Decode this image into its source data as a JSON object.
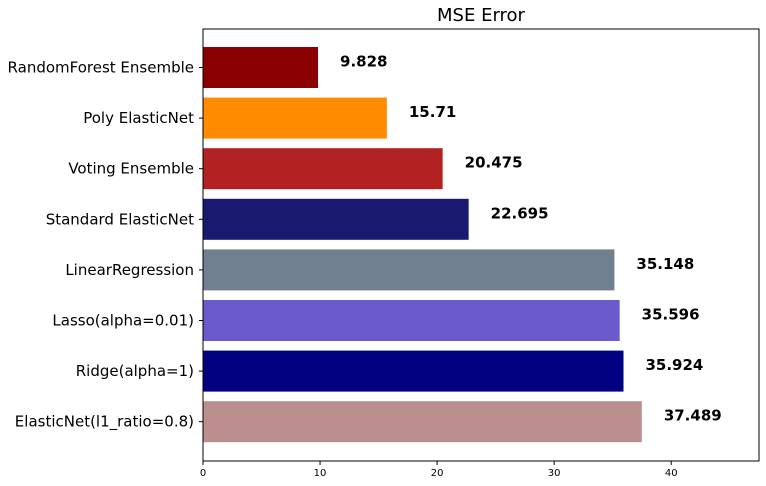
{
  "chart_data": {
    "type": "bar",
    "orientation": "horizontal",
    "title": "MSE Error",
    "xlabel": "",
    "ylabel": "",
    "xlim": [
      0,
      47.5
    ],
    "xticks": [
      0,
      10,
      20,
      30,
      40
    ],
    "grid": false,
    "categories": [
      "RandomForest Ensemble",
      "Poly ElasticNet",
      "Voting Ensemble",
      "Standard ElasticNet",
      "LinearRegression",
      "Lasso(alpha=0.01)",
      "Ridge(alpha=1)",
      "ElasticNet(l1_ratio=0.8)"
    ],
    "values": [
      9.828,
      15.71,
      20.475,
      22.695,
      35.148,
      35.596,
      35.924,
      37.489
    ],
    "value_labels": [
      "9.828",
      "15.71",
      "20.475",
      "22.695",
      "35.148",
      "35.596",
      "35.924",
      "37.489"
    ],
    "colors": [
      "#8b0000",
      "#ff8c00",
      "#b22222",
      "#191970",
      "#708090",
      "#6a5acd",
      "#000080",
      "#bc8f8f"
    ]
  }
}
